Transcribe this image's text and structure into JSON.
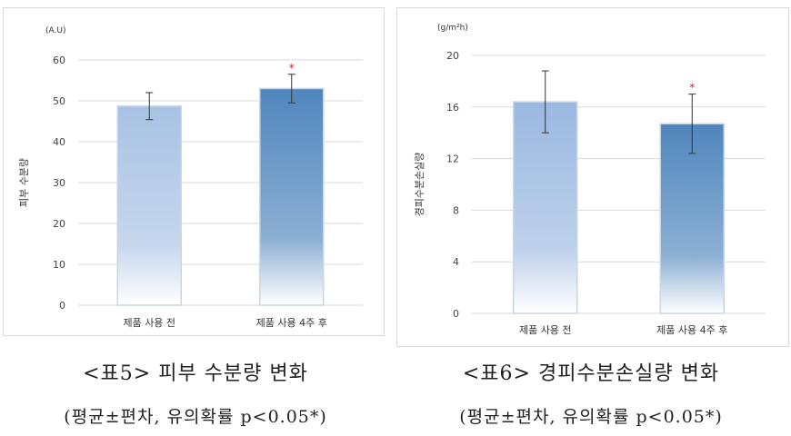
{
  "chart_data": [
    {
      "type": "bar",
      "title": "",
      "unit": "(A.U)",
      "ylabel": "피부 수분량",
      "xlabel": "",
      "ylim": [
        0,
        60
      ],
      "yticks": [
        0,
        10,
        20,
        30,
        40,
        50,
        60
      ],
      "grid": true,
      "categories": [
        "제품 사용 전",
        "제품 사용 4주 후"
      ],
      "values": [
        48.7,
        53.0
      ],
      "errors": [
        3.3,
        3.5
      ],
      "significance": [
        "",
        "*"
      ],
      "colors": [
        "#a8c2e4",
        "#4f86bd"
      ]
    },
    {
      "type": "bar",
      "title": "",
      "unit": "(g/m²h)",
      "ylabel": "경피수분손실량",
      "xlabel": "",
      "ylim": [
        0,
        20
      ],
      "yticks": [
        0,
        4,
        8,
        12,
        16,
        20
      ],
      "grid": true,
      "categories": [
        "제품 사용 전",
        "제품 사용 4주 후"
      ],
      "values": [
        16.4,
        14.7
      ],
      "errors": [
        2.4,
        2.3
      ],
      "significance": [
        "",
        "*"
      ],
      "colors": [
        "#9bb8e0",
        "#4f86bd"
      ]
    }
  ],
  "captions": {
    "left_title": "<표5> 피부 수분량 변화",
    "right_title": "<표6> 경피수분손실량 변화",
    "left_note": "(평균±편차, 유의확률 p<0.05*)",
    "right_note": "(평균±편차, 유의확률 p<0.05*)"
  }
}
